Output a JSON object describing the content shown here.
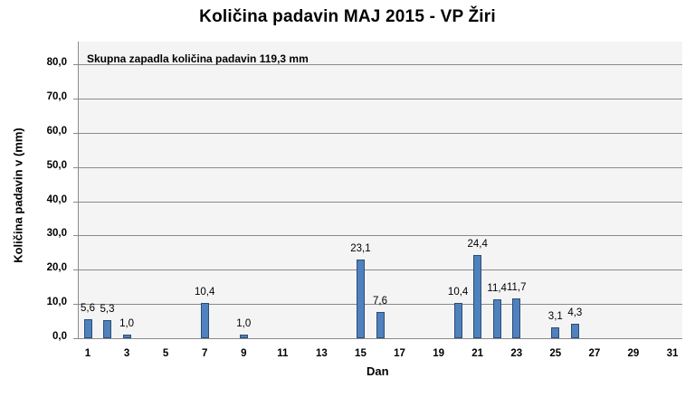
{
  "chart_data": {
    "type": "bar",
    "title": "Količina padavin  MAJ 2015 - VP Žiri",
    "subtitle": "Skupna zapadla količina padavin  119,3 mm",
    "xlabel": "Dan",
    "ylabel": "Količina padavin v  (mm)",
    "ylim": [
      0,
      80
    ],
    "grid": true,
    "legend": "none",
    "yticks": [
      "0,0",
      "10,0",
      "20,0",
      "30,0",
      "40,0",
      "50,0",
      "60,0",
      "70,0",
      "80,0"
    ],
    "xticks": [
      "1",
      "3",
      "5",
      "7",
      "9",
      "11",
      "13",
      "15",
      "17",
      "19",
      "21",
      "23",
      "25",
      "27",
      "29",
      "31"
    ],
    "categories": [
      1,
      2,
      3,
      4,
      5,
      6,
      7,
      8,
      9,
      10,
      11,
      12,
      13,
      14,
      15,
      16,
      17,
      18,
      19,
      20,
      21,
      22,
      23,
      24,
      25,
      26,
      27,
      28,
      29,
      30,
      31
    ],
    "values": [
      5.6,
      5.3,
      1.0,
      0,
      0,
      0,
      10.4,
      0,
      1.0,
      0,
      0,
      0,
      0,
      0,
      23.1,
      7.6,
      0,
      0,
      0,
      10.4,
      24.4,
      11.4,
      11.7,
      0,
      3.1,
      4.3,
      0,
      0,
      0,
      0,
      0
    ],
    "data_labels": {
      "1": "5,6",
      "2": "5,3",
      "3": "1,0",
      "7": "10,4",
      "9": "1,0",
      "15": "23,1",
      "16": "7,6",
      "20": "10,4",
      "21": "24,4",
      "22": "11,4",
      "23": "11,7",
      "25": "3,1",
      "26": "4,3"
    },
    "bar_color": "#4f81bd",
    "plot_background": "#f4f4f4"
  }
}
